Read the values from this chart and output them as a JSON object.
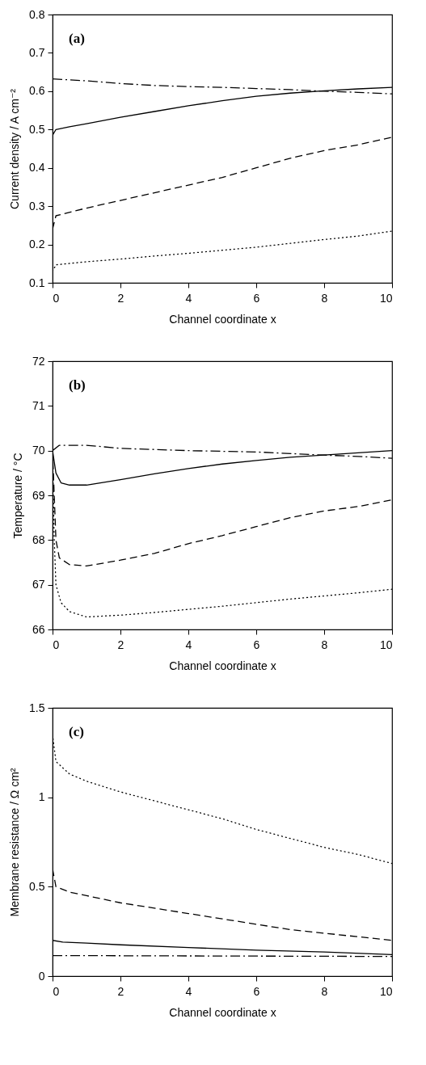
{
  "chart_data": [
    {
      "type": "line",
      "xlabel": "Channel coordinate x",
      "ylabel": "Current density / A cm⁻²",
      "annotations": [
        "(a)"
      ],
      "xlim": [
        0,
        10
      ],
      "xticks": [
        0,
        2,
        4,
        6,
        8,
        10
      ],
      "ylim": [
        0.1,
        0.8
      ],
      "yticks": [
        0.1,
        0.2,
        0.3,
        0.4,
        0.5,
        0.6,
        0.7,
        0.8
      ],
      "series": [
        {
          "color": "#000000",
          "line_style": "dashdot",
          "x": [
            0,
            1,
            2,
            3,
            4,
            5,
            6,
            7,
            8,
            9,
            10
          ],
          "values": [
            0.632,
            0.627,
            0.62,
            0.615,
            0.612,
            0.61,
            0.607,
            0.604,
            0.6,
            0.597,
            0.593
          ]
        },
        {
          "color": "#000000",
          "line_style": "solid",
          "x": [
            0,
            0.1,
            0.5,
            1,
            2,
            3,
            4,
            5,
            6,
            7,
            8,
            9,
            10
          ],
          "values": [
            0.485,
            0.5,
            0.507,
            0.515,
            0.532,
            0.547,
            0.562,
            0.575,
            0.587,
            0.595,
            0.601,
            0.606,
            0.61
          ]
        },
        {
          "color": "#000000",
          "line_style": "dashed",
          "x": [
            0,
            0.1,
            1,
            2,
            3,
            4,
            5,
            6,
            7,
            8,
            9,
            10
          ],
          "values": [
            0.24,
            0.275,
            0.295,
            0.315,
            0.335,
            0.355,
            0.375,
            0.4,
            0.425,
            0.445,
            0.46,
            0.48
          ]
        },
        {
          "color": "#000000",
          "line_style": "dotted",
          "x": [
            0,
            0.1,
            1,
            2,
            3,
            4,
            5,
            6,
            7,
            8,
            9,
            10
          ],
          "values": [
            0.13,
            0.147,
            0.155,
            0.162,
            0.17,
            0.177,
            0.185,
            0.193,
            0.203,
            0.213,
            0.222,
            0.235
          ]
        }
      ]
    },
    {
      "type": "line",
      "xlabel": "Channel coordinate x",
      "ylabel": "Temperature / °C",
      "annotations": [
        "(b)"
      ],
      "xlim": [
        0,
        10
      ],
      "xticks": [
        0,
        2,
        4,
        6,
        8,
        10
      ],
      "ylim": [
        66,
        72
      ],
      "yticks": [
        66,
        67,
        68,
        69,
        70,
        71,
        72
      ],
      "series": [
        {
          "color": "#000000",
          "line_style": "dashdot",
          "x": [
            0,
            0.2,
            1,
            2,
            4,
            6,
            8,
            9,
            10
          ],
          "values": [
            70.0,
            70.12,
            70.12,
            70.05,
            70.0,
            69.97,
            69.9,
            69.87,
            69.83
          ]
        },
        {
          "color": "#000000",
          "line_style": "solid",
          "x": [
            0,
            0.1,
            0.25,
            0.5,
            1,
            2,
            3,
            4,
            5,
            6,
            7,
            8,
            9,
            10
          ],
          "values": [
            70.0,
            69.5,
            69.28,
            69.23,
            69.23,
            69.35,
            69.48,
            69.6,
            69.7,
            69.78,
            69.85,
            69.9,
            69.95,
            70.0
          ]
        },
        {
          "color": "#000000",
          "line_style": "dashed",
          "x": [
            0,
            0.05,
            0.1,
            0.2,
            0.5,
            1,
            2,
            3,
            4,
            5,
            6,
            7,
            8,
            9,
            10
          ],
          "values": [
            70.0,
            69.0,
            68.0,
            67.6,
            67.45,
            67.42,
            67.55,
            67.7,
            67.92,
            68.1,
            68.3,
            68.5,
            68.65,
            68.75,
            68.9
          ]
        },
        {
          "color": "#000000",
          "line_style": "dotted",
          "x": [
            0,
            0.05,
            0.1,
            0.25,
            0.5,
            1,
            2,
            3,
            4,
            5,
            6,
            7,
            8,
            9,
            10
          ],
          "values": [
            70.0,
            68.0,
            67.0,
            66.6,
            66.4,
            66.28,
            66.32,
            66.38,
            66.45,
            66.52,
            66.6,
            66.68,
            66.75,
            66.82,
            66.9
          ]
        }
      ]
    },
    {
      "type": "line",
      "xlabel": "Channel coordinate x",
      "ylabel": "Membrane resistance / Ω cm²",
      "annotations": [
        "(c)"
      ],
      "xlim": [
        0,
        10
      ],
      "xticks": [
        0,
        2,
        4,
        6,
        8,
        10
      ],
      "ylim": [
        0,
        1.5
      ],
      "yticks": [
        0,
        0.5,
        1,
        1.5
      ],
      "series": [
        {
          "color": "#000000",
          "line_style": "dotted",
          "x": [
            0,
            0.1,
            0.5,
            1,
            2,
            3,
            4,
            5,
            6,
            7,
            8,
            9,
            10
          ],
          "values": [
            1.35,
            1.2,
            1.13,
            1.09,
            1.03,
            0.98,
            0.93,
            0.88,
            0.82,
            0.77,
            0.72,
            0.68,
            0.63
          ]
        },
        {
          "color": "#000000",
          "line_style": "dashed",
          "x": [
            0,
            0.1,
            0.5,
            1,
            2,
            3,
            4,
            5,
            6,
            7,
            8,
            9,
            10
          ],
          "values": [
            0.6,
            0.5,
            0.47,
            0.45,
            0.41,
            0.38,
            0.35,
            0.32,
            0.29,
            0.26,
            0.24,
            0.22,
            0.2
          ]
        },
        {
          "color": "#000000",
          "line_style": "solid",
          "x": [
            0,
            0.3,
            1,
            2,
            4,
            6,
            8,
            10
          ],
          "values": [
            0.2,
            0.19,
            0.185,
            0.175,
            0.16,
            0.145,
            0.135,
            0.12
          ]
        },
        {
          "color": "#000000",
          "line_style": "dashdot",
          "x": [
            0,
            10
          ],
          "values": [
            0.115,
            0.11
          ]
        }
      ]
    }
  ]
}
